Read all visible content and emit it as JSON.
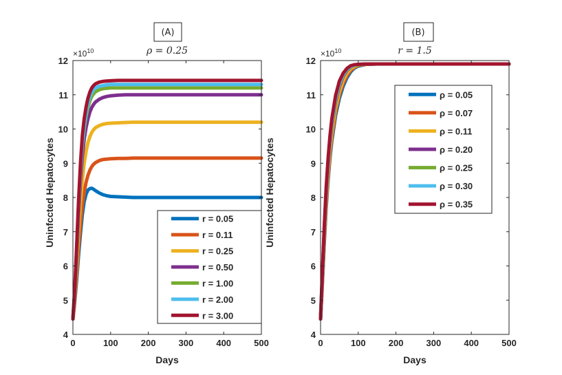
{
  "chart_data": [
    {
      "type": "line",
      "panel_label": "(A)",
      "title": "ρ = 0.25",
      "xlabel": "Days",
      "ylabel": "Uninfccted Hepatocytes",
      "y_exponent": {
        "base": "×10",
        "power": "10"
      },
      "xlim": [
        0,
        500
      ],
      "ylim": [
        4,
        12
      ],
      "xticks": [
        0,
        100,
        200,
        300,
        400,
        500
      ],
      "yticks": [
        4,
        5,
        6,
        7,
        8,
        9,
        10,
        11,
        12
      ],
      "legend_location": "lower-right",
      "series": [
        {
          "name": "r = 0.05",
          "color": "#0072BD",
          "x": [
            0,
            5,
            10,
            15,
            20,
            25,
            30,
            35,
            40,
            45,
            50,
            55,
            60,
            70,
            80,
            90,
            100,
            120,
            140,
            160,
            180,
            200,
            250,
            300,
            350,
            400,
            450,
            500
          ],
          "values": [
            4.45,
            4.95,
            5.6,
            6.3,
            6.95,
            7.5,
            7.88,
            8.1,
            8.22,
            8.26,
            8.27,
            8.24,
            8.2,
            8.13,
            8.08,
            8.05,
            8.03,
            8.02,
            8.01,
            8.0,
            8.0,
            8.0,
            8.0,
            8.0,
            8.0,
            8.0,
            8.0,
            8.0
          ]
        },
        {
          "name": "r = 0.11",
          "color": "#D95319",
          "x": [
            0,
            5,
            10,
            15,
            20,
            25,
            30,
            35,
            40,
            45,
            50,
            55,
            60,
            70,
            80,
            90,
            100,
            120,
            140,
            160,
            180,
            200,
            250,
            300,
            350,
            400,
            450,
            500
          ],
          "values": [
            4.45,
            5.0,
            5.75,
            6.5,
            7.2,
            7.75,
            8.15,
            8.45,
            8.65,
            8.8,
            8.9,
            8.97,
            9.02,
            9.08,
            9.11,
            9.12,
            9.13,
            9.14,
            9.14,
            9.15,
            9.15,
            9.15,
            9.15,
            9.15,
            9.15,
            9.15,
            9.15,
            9.15
          ]
        },
        {
          "name": "r = 0.25",
          "color": "#EDB120",
          "x": [
            0,
            5,
            10,
            15,
            20,
            25,
            30,
            35,
            40,
            45,
            50,
            55,
            60,
            70,
            80,
            90,
            100,
            120,
            140,
            160,
            180,
            200,
            250,
            300,
            350,
            400,
            450,
            500
          ],
          "values": [
            4.45,
            5.1,
            6.0,
            7.0,
            7.85,
            8.5,
            9.0,
            9.35,
            9.6,
            9.78,
            9.9,
            9.98,
            10.04,
            10.1,
            10.14,
            10.16,
            10.17,
            10.18,
            10.19,
            10.2,
            10.2,
            10.2,
            10.2,
            10.2,
            10.2,
            10.2,
            10.2,
            10.2
          ]
        },
        {
          "name": "r = 0.50",
          "color": "#7E2F8E",
          "x": [
            0,
            5,
            10,
            15,
            20,
            25,
            30,
            35,
            40,
            45,
            50,
            55,
            60,
            70,
            80,
            90,
            100,
            120,
            140,
            160,
            180,
            200,
            250,
            300,
            350,
            400,
            450,
            500
          ],
          "values": [
            4.45,
            5.2,
            6.3,
            7.5,
            8.5,
            9.2,
            9.7,
            10.05,
            10.3,
            10.5,
            10.63,
            10.72,
            10.79,
            10.87,
            10.92,
            10.95,
            10.97,
            10.99,
            11.0,
            11.0,
            11.0,
            11.0,
            11.0,
            11.0,
            11.0,
            11.0,
            11.0,
            11.0
          ]
        },
        {
          "name": "r = 1.00",
          "color": "#77AC30",
          "x": [
            0,
            5,
            10,
            15,
            20,
            25,
            30,
            35,
            40,
            45,
            50,
            55,
            60,
            70,
            80,
            90,
            100,
            120,
            140,
            160,
            180,
            200,
            250,
            300,
            350,
            400,
            450,
            500
          ],
          "values": [
            4.45,
            5.25,
            6.4,
            7.7,
            8.75,
            9.5,
            10.0,
            10.37,
            10.63,
            10.82,
            10.95,
            11.03,
            11.09,
            11.15,
            11.18,
            11.19,
            11.2,
            11.2,
            11.2,
            11.2,
            11.2,
            11.2,
            11.2,
            11.2,
            11.2,
            11.2,
            11.2,
            11.2
          ]
        },
        {
          "name": "r = 2.00",
          "color": "#4DBEEE",
          "x": [
            0,
            5,
            10,
            15,
            20,
            25,
            30,
            35,
            40,
            45,
            50,
            55,
            60,
            70,
            80,
            90,
            100,
            120,
            140,
            160,
            180,
            200,
            250,
            300,
            350,
            400,
            450,
            500
          ],
          "values": [
            4.45,
            5.3,
            6.5,
            7.8,
            8.85,
            9.6,
            10.1,
            10.48,
            10.75,
            10.94,
            11.07,
            11.15,
            11.2,
            11.25,
            11.27,
            11.29,
            11.3,
            11.3,
            11.3,
            11.3,
            11.3,
            11.3,
            11.3,
            11.3,
            11.3,
            11.3,
            11.3,
            11.3
          ]
        },
        {
          "name": "r = 3.00",
          "color": "#A2142F",
          "x": [
            0,
            5,
            10,
            15,
            20,
            25,
            30,
            35,
            40,
            45,
            50,
            55,
            60,
            70,
            80,
            90,
            100,
            120,
            140,
            160,
            180,
            200,
            250,
            300,
            350,
            400,
            450,
            500
          ],
          "values": [
            4.45,
            5.35,
            6.6,
            7.9,
            9.0,
            9.8,
            10.3,
            10.65,
            10.9,
            11.08,
            11.2,
            11.27,
            11.32,
            11.37,
            11.39,
            11.4,
            11.41,
            11.42,
            11.42,
            11.42,
            11.42,
            11.42,
            11.42,
            11.42,
            11.42,
            11.42,
            11.42,
            11.42
          ]
        }
      ]
    },
    {
      "type": "line",
      "panel_label": "(B)",
      "title": "r = 1.5",
      "xlabel": "Days",
      "ylabel": "Uninfccted Hepatocytes",
      "y_exponent": {
        "base": "×10",
        "power": "10"
      },
      "xlim": [
        0,
        500
      ],
      "ylim": [
        4,
        12
      ],
      "xticks": [
        0,
        100,
        200,
        300,
        400,
        500
      ],
      "yticks": [
        4,
        5,
        6,
        7,
        8,
        9,
        10,
        11,
        12
      ],
      "legend_location": "top-right",
      "series": [
        {
          "name": "ρ = 0.05",
          "color": "#0072BD",
          "x": [
            0,
            5,
            10,
            15,
            20,
            25,
            30,
            40,
            50,
            60,
            70,
            80,
            90,
            100,
            120,
            150,
            200,
            300,
            400,
            500
          ],
          "values": [
            4.45,
            5.5,
            6.7,
            7.7,
            8.5,
            9.15,
            9.65,
            10.4,
            10.9,
            11.25,
            11.5,
            11.67,
            11.78,
            11.84,
            11.89,
            11.9,
            11.9,
            11.9,
            11.9,
            11.9
          ]
        },
        {
          "name": "ρ = 0.07",
          "color": "#D95319",
          "x": [
            0,
            5,
            10,
            15,
            20,
            25,
            30,
            40,
            50,
            60,
            70,
            80,
            90,
            100,
            120,
            150,
            200,
            300,
            400,
            500
          ],
          "values": [
            4.45,
            5.55,
            6.8,
            7.8,
            8.6,
            9.25,
            9.75,
            10.5,
            11.0,
            11.33,
            11.56,
            11.71,
            11.8,
            11.86,
            11.89,
            11.9,
            11.9,
            11.9,
            11.9,
            11.9
          ]
        },
        {
          "name": "ρ = 0.11",
          "color": "#EDB120",
          "x": [
            0,
            5,
            10,
            15,
            20,
            25,
            30,
            40,
            50,
            60,
            70,
            80,
            90,
            100,
            120,
            150,
            200,
            300,
            400,
            500
          ],
          "values": [
            4.45,
            5.6,
            6.9,
            7.9,
            8.75,
            9.4,
            9.9,
            10.62,
            11.1,
            11.42,
            11.63,
            11.76,
            11.83,
            11.87,
            11.9,
            11.9,
            11.9,
            11.9,
            11.9,
            11.9
          ]
        },
        {
          "name": "ρ = 0.20",
          "color": "#7E2F8E",
          "x": [
            0,
            5,
            10,
            15,
            20,
            25,
            30,
            40,
            50,
            60,
            70,
            80,
            90,
            100,
            120,
            150,
            200,
            300,
            400,
            500
          ],
          "values": [
            4.45,
            5.7,
            7.05,
            8.1,
            8.95,
            9.6,
            10.1,
            10.8,
            11.25,
            11.54,
            11.71,
            11.81,
            11.86,
            11.88,
            11.9,
            11.9,
            11.9,
            11.9,
            11.9,
            11.9
          ]
        },
        {
          "name": "ρ = 0.25",
          "color": "#77AC30",
          "x": [
            0,
            5,
            10,
            15,
            20,
            25,
            30,
            40,
            50,
            60,
            70,
            80,
            90,
            100,
            120,
            150,
            200,
            300,
            400,
            500
          ],
          "values": [
            4.45,
            5.75,
            7.1,
            8.15,
            9.0,
            9.65,
            10.15,
            10.85,
            11.3,
            11.57,
            11.73,
            11.82,
            11.86,
            11.88,
            11.9,
            11.9,
            11.9,
            11.9,
            11.9,
            11.9
          ]
        },
        {
          "name": "ρ = 0.30",
          "color": "#4DBEEE",
          "x": [
            0,
            5,
            10,
            15,
            20,
            25,
            30,
            40,
            50,
            60,
            70,
            80,
            90,
            100,
            120,
            150,
            200,
            300,
            400,
            500
          ],
          "values": [
            4.45,
            5.8,
            7.15,
            8.2,
            9.05,
            9.7,
            10.2,
            10.9,
            11.33,
            11.59,
            11.74,
            11.83,
            11.87,
            11.89,
            11.9,
            11.9,
            11.9,
            11.9,
            11.9,
            11.9
          ]
        },
        {
          "name": "ρ = 0.35",
          "color": "#A2142F",
          "x": [
            0,
            5,
            10,
            15,
            20,
            25,
            30,
            40,
            50,
            60,
            70,
            80,
            90,
            100,
            120,
            150,
            200,
            300,
            400,
            500
          ],
          "values": [
            4.45,
            5.85,
            7.2,
            8.3,
            9.15,
            9.8,
            10.3,
            10.98,
            11.4,
            11.63,
            11.77,
            11.85,
            11.88,
            11.89,
            11.9,
            11.9,
            11.9,
            11.9,
            11.9,
            11.9
          ]
        }
      ]
    }
  ]
}
